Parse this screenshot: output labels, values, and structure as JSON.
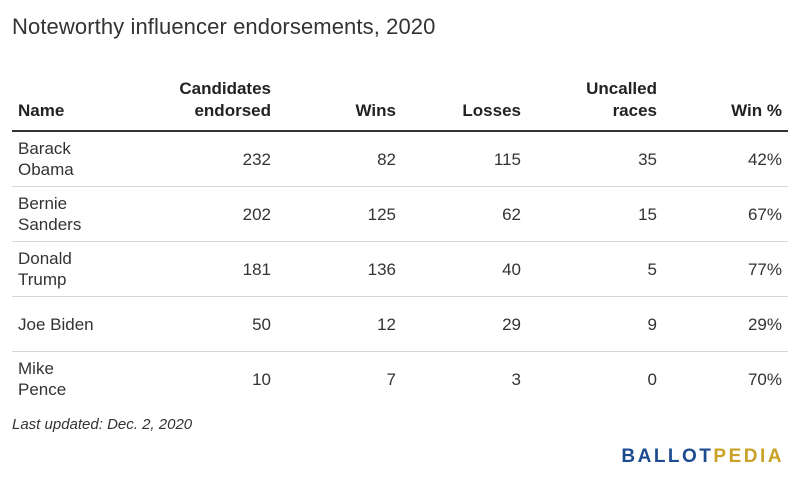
{
  "title": "Noteworthy influencer endorsements, 2020",
  "chart_data": {
    "type": "table",
    "title": "Noteworthy influencer endorsements, 2020",
    "columns": [
      "Name",
      "Candidates\nendorsed",
      "Wins",
      "Losses",
      "Uncalled\nraces",
      "Win %"
    ],
    "rows": [
      [
        "Barack Obama",
        "232",
        "82",
        "115",
        "35",
        "42%"
      ],
      [
        "Bernie Sanders",
        "202",
        "125",
        "62",
        "15",
        "67%"
      ],
      [
        "Donald Trump",
        "181",
        "136",
        "40",
        "5",
        "77%"
      ],
      [
        "Joe Biden",
        "50",
        "12",
        "29",
        "9",
        "29%"
      ],
      [
        "Mike Pence",
        "10",
        "7",
        "3",
        "0",
        "70%"
      ]
    ]
  },
  "footnote": "Last updated: Dec. 2, 2020",
  "logo": {
    "part1": "BALLOT",
    "part2": "PEDIA"
  }
}
